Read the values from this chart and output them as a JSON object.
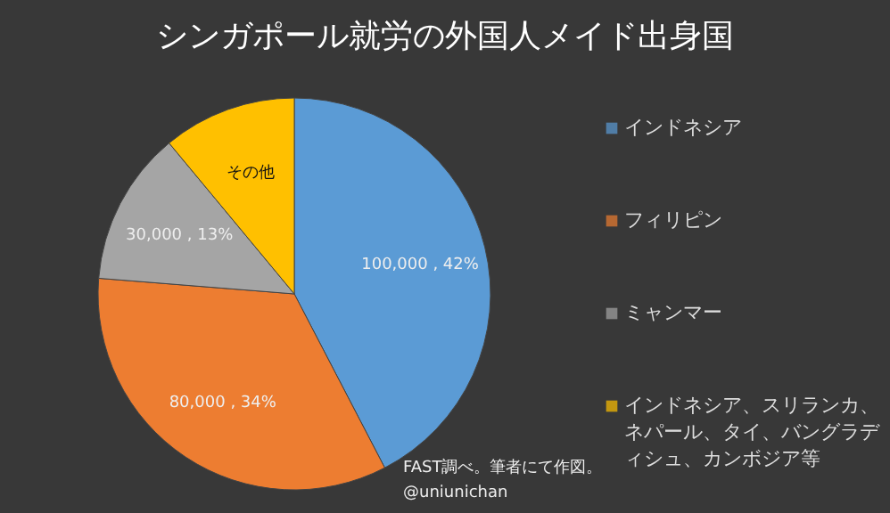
{
  "chart_data": {
    "type": "pie",
    "title": "シンガポール就労の外国人メイド出身国",
    "categories": [
      "インドネシア",
      "フィリピン",
      "ミャンマー",
      "インドネシア、スリランカ、ネパール、タイ、バングラディシュ、カンボジア等"
    ],
    "values": [
      100000,
      80000,
      30000,
      26000
    ],
    "colors": [
      "#5b9bd5",
      "#ed7d31",
      "#a5a5a5",
      "#ffc000"
    ],
    "value_labels": [
      "100,000 , 42%",
      "80,000 , 34%",
      "30,000 , 13%",
      "その他"
    ],
    "legend": "right",
    "annotations": [
      "FAST調べ。筆者にて作図。",
      "@uniunichan"
    ]
  }
}
